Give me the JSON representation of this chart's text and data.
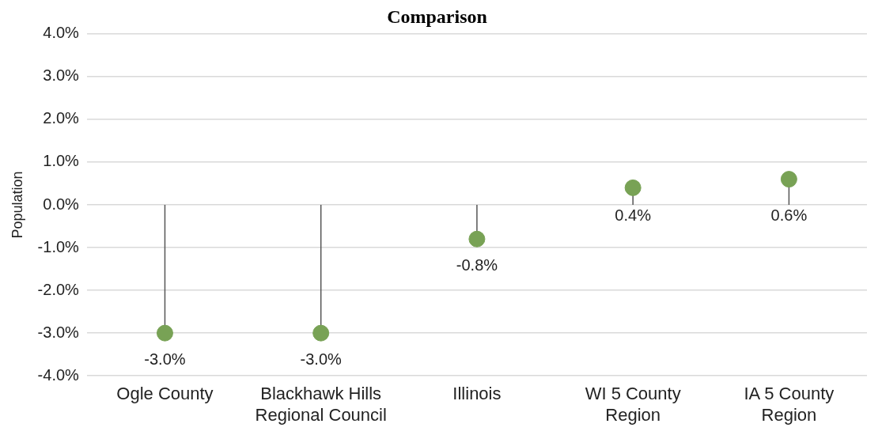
{
  "chart_data": {
    "type": "lollipop",
    "title": "Comparison",
    "ylabel": "Population",
    "categories": [
      "Ogle County",
      "Blackhawk Hills Regional Council",
      "Illinois",
      "WI 5 County Region",
      "IA 5 County Region"
    ],
    "values": [
      -3.0,
      -3.0,
      -0.8,
      0.4,
      0.6
    ],
    "value_labels": [
      "-3.0%",
      "-3.0%",
      "-0.8%",
      "0.4%",
      "0.6%"
    ],
    "color": "#78a255",
    "ylim": [
      -4,
      4
    ],
    "yticks": [
      {
        "value": -4,
        "label": "-4.0%"
      },
      {
        "value": -3,
        "label": "-3.0%"
      },
      {
        "value": -2,
        "label": "-2.0%"
      },
      {
        "value": -1,
        "label": "-1.0%"
      },
      {
        "value": 0,
        "label": "0.0%"
      },
      {
        "value": 1,
        "label": "1.0%"
      },
      {
        "value": 2,
        "label": "2.0%"
      },
      {
        "value": 3,
        "label": "3.0%"
      },
      {
        "value": 4,
        "label": "4.0%"
      }
    ],
    "grid": "y",
    "marker": "circle"
  }
}
